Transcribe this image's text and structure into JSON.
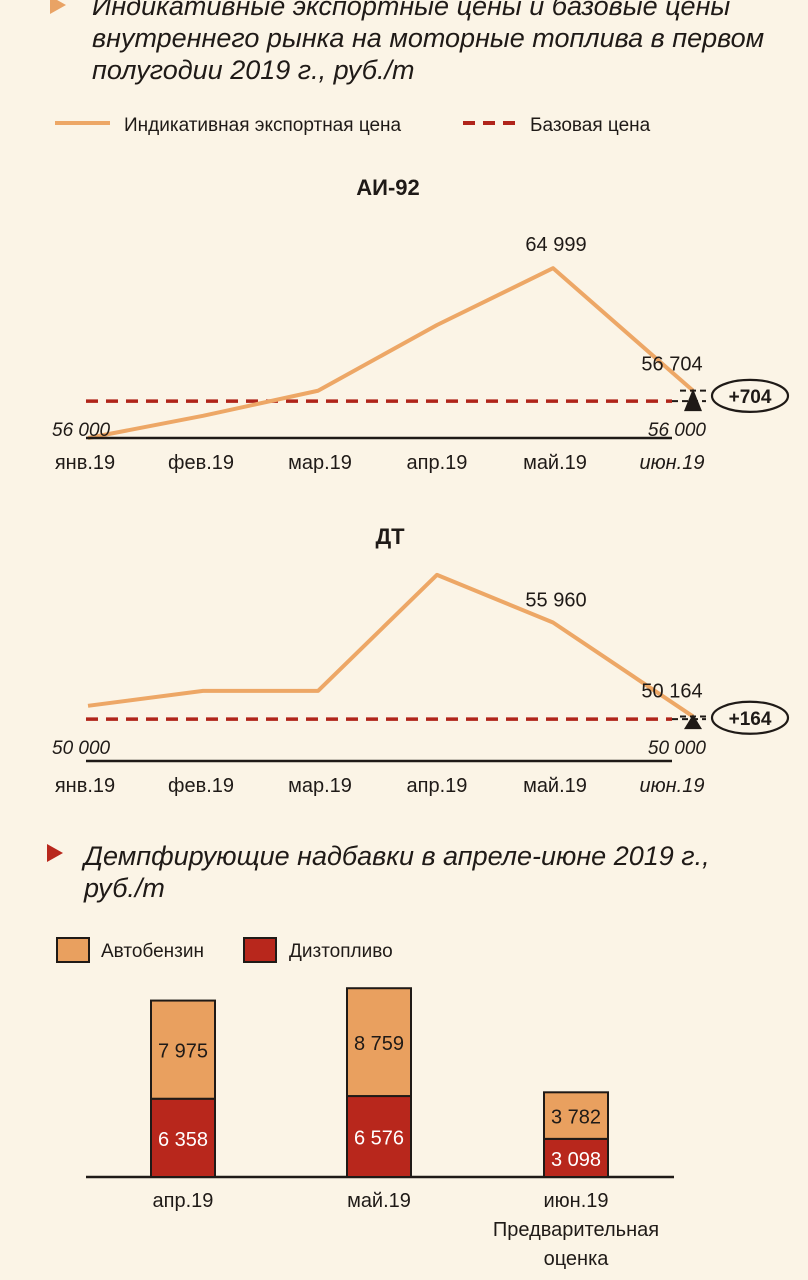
{
  "header": {
    "title": "Индикативные экспортные цены и базовые цены внутреннего рынка на моторные топлива в первом полугодии 2019 г., руб./т"
  },
  "legend_top": {
    "export_label": "Индикативная экспортная цена",
    "base_label": "Базовая цена"
  },
  "colors": {
    "export_line": "#eda766",
    "base_line": "#b0241a",
    "gasoline_bar": "#e9a05f",
    "diesel_bar": "#b8271c",
    "background": "#fbf4e6"
  },
  "section2": {
    "title": "Демпфирующие надбавки в апреле-июне 2019 г., руб./т",
    "legend": {
      "gasoline": "Автобензин",
      "diesel": "Дизтопливо"
    }
  },
  "chart_data": [
    {
      "type": "line",
      "title": "АИ-92",
      "x": [
        "янв.19",
        "фев.19",
        "мар.19",
        "апр.19",
        "май.19",
        "июн.19"
      ],
      "series": [
        {
          "name": "Индикативная экспортная цена",
          "values": [
            53500,
            55000,
            56700,
            61150,
            64999,
            56704
          ]
        },
        {
          "name": "Базовая цена",
          "values": [
            56000,
            56000,
            56000,
            56000,
            56000,
            56000
          ]
        }
      ],
      "labels": {
        "peak": "64 999",
        "last": "56 704",
        "base_left": "56 000",
        "base_right": "56 000",
        "diff": "+704"
      },
      "ylim": [
        53500,
        66500
      ]
    },
    {
      "type": "line",
      "title": "ДТ",
      "x": [
        "янв.19",
        "фев.19",
        "мар.19",
        "апр.19",
        "май.19",
        "июн.19"
      ],
      "series": [
        {
          "name": "Индикативная экспортная цена",
          "values": [
            50820,
            51740,
            51740,
            58900,
            55960,
            50164
          ]
        },
        {
          "name": "Базовая цена",
          "values": [
            50000,
            50000,
            50000,
            50000,
            50000,
            50000
          ]
        }
      ],
      "labels": {
        "point": "55 960",
        "last": "50 164",
        "base_left": "50 000",
        "base_right": "50 000",
        "diff": "+164"
      },
      "ylim": [
        47600,
        59200
      ]
    },
    {
      "type": "bar",
      "stacked": true,
      "categories": [
        "апр.19",
        "май.19",
        "июн.19"
      ],
      "category_notes": [
        "",
        "",
        "Предварительная оценка"
      ],
      "series": [
        {
          "name": "Дизтопливо",
          "values": [
            6358,
            6576,
            3098
          ],
          "labels": [
            "6 358",
            "6 576",
            "3 098"
          ]
        },
        {
          "name": "Автобензин",
          "values": [
            7975,
            8759,
            3782
          ],
          "labels": [
            "7 975",
            "8 759",
            "3 782"
          ]
        }
      ]
    }
  ]
}
